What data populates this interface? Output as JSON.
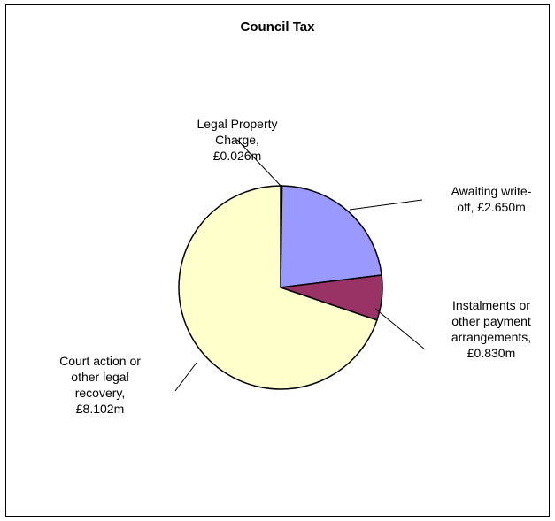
{
  "chart_data": {
    "type": "pie",
    "title": "Council Tax",
    "slices": [
      {
        "label": "Legal Property Charge",
        "value": 0.026,
        "display_value": "£0.026m",
        "label_lines": [
          "Legal Property",
          "Charge,",
          "£0.026m"
        ],
        "color": "#000000"
      },
      {
        "label": "Awaiting write-off",
        "value": 2.65,
        "display_value": "£2.650m",
        "label_lines": [
          "Awaiting write-",
          "off, £2.650m"
        ],
        "color": "#9999ff"
      },
      {
        "label": "Instalments or other payment arrangements",
        "value": 0.83,
        "display_value": "£0.830m",
        "label_lines": [
          "Instalments or",
          "other payment",
          "arrangements,",
          "£0.830m"
        ],
        "color": "#993366"
      },
      {
        "label": "Court action or other legal recovery",
        "value": 8.102,
        "display_value": "£8.102m",
        "label_lines": [
          "Court action or",
          "other legal",
          "recovery,",
          "£8.102m"
        ],
        "color": "#ffffcc"
      }
    ]
  }
}
